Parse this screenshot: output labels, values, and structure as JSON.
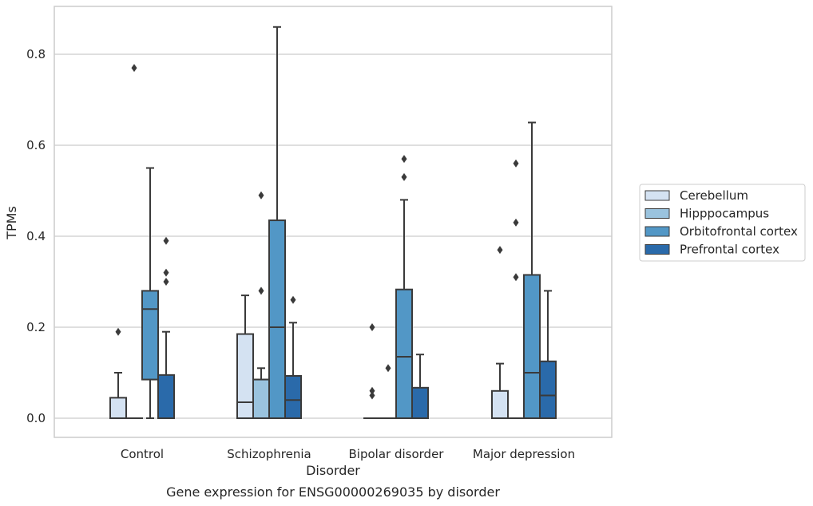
{
  "chart_data": {
    "type": "box",
    "title": "",
    "caption": "Gene expression for ENSG00000269035 by disorder",
    "xlabel": "Disorder",
    "ylabel": "TPMs",
    "ylim": [
      -0.042,
      0.905
    ],
    "y_ticks": [
      0.0,
      0.2,
      0.4,
      0.6,
      0.8
    ],
    "y_tick_labels": [
      "0.0",
      "0.2",
      "0.4",
      "0.6",
      "0.8"
    ],
    "grid": "horizontal",
    "legend_placement": "right",
    "categories": [
      "Control",
      "Schizophrenia",
      "Bipolar disorder",
      "Major depression"
    ],
    "series": [
      {
        "name": "Cerebellum",
        "color": "#d4e2f2",
        "boxes": [
          {
            "category": "Control",
            "whisker_low": 0.0,
            "q1": 0.0,
            "median": 0.0,
            "q3": 0.045,
            "whisker_high": 0.1,
            "outliers": [
              0.19
            ]
          },
          {
            "category": "Schizophrenia",
            "whisker_low": 0.0,
            "q1": 0.0,
            "median": 0.035,
            "q3": 0.185,
            "whisker_high": 0.27,
            "outliers": []
          },
          {
            "category": "Bipolar disorder",
            "whisker_low": 0.0,
            "q1": 0.0,
            "median": 0.0,
            "q3": 0.0,
            "whisker_high": 0.0,
            "outliers": [
              0.05,
              0.06,
              0.2
            ]
          },
          {
            "category": "Major depression",
            "whisker_low": 0.0,
            "q1": 0.0,
            "median": 0.0,
            "q3": 0.06,
            "whisker_high": 0.12,
            "outliers": [
              0.37
            ]
          }
        ]
      },
      {
        "name": "Hipppocampus",
        "color": "#9ac3de",
        "boxes": [
          {
            "category": "Control",
            "whisker_low": 0.0,
            "q1": 0.0,
            "median": 0.0,
            "q3": 0.0,
            "whisker_high": 0.0,
            "outliers": [
              0.77
            ]
          },
          {
            "category": "Schizophrenia",
            "whisker_low": 0.0,
            "q1": 0.0,
            "median": 0.085,
            "q3": 0.085,
            "whisker_high": 0.11,
            "outliers": [
              0.28,
              0.49
            ]
          },
          {
            "category": "Bipolar disorder",
            "whisker_low": 0.0,
            "q1": 0.0,
            "median": 0.0,
            "q3": 0.0,
            "whisker_high": 0.0,
            "outliers": [
              0.11
            ]
          },
          {
            "category": "Major depression",
            "whisker_low": 0.0,
            "q1": 0.0,
            "median": 0.0,
            "q3": 0.0,
            "whisker_high": 0.0,
            "outliers": [
              0.31,
              0.43,
              0.56
            ]
          }
        ]
      },
      {
        "name": "Orbitofrontal cortex",
        "color": "#5297c6",
        "boxes": [
          {
            "category": "Control",
            "whisker_low": 0.0,
            "q1": 0.085,
            "median": 0.24,
            "q3": 0.28,
            "whisker_high": 0.55,
            "outliers": []
          },
          {
            "category": "Schizophrenia",
            "whisker_low": 0.0,
            "q1": 0.0,
            "median": 0.2,
            "q3": 0.435,
            "whisker_high": 0.86,
            "outliers": []
          },
          {
            "category": "Bipolar disorder",
            "whisker_low": 0.0,
            "q1": 0.0,
            "median": 0.135,
            "q3": 0.283,
            "whisker_high": 0.48,
            "outliers": [
              0.53,
              0.57
            ]
          },
          {
            "category": "Major depression",
            "whisker_low": 0.0,
            "q1": 0.0,
            "median": 0.1,
            "q3": 0.315,
            "whisker_high": 0.65,
            "outliers": []
          }
        ]
      },
      {
        "name": "Prefrontal cortex",
        "color": "#2a6aaa",
        "boxes": [
          {
            "category": "Control",
            "whisker_low": 0.0,
            "q1": 0.0,
            "median": 0.0,
            "q3": 0.095,
            "whisker_high": 0.19,
            "outliers": [
              0.3,
              0.32,
              0.39
            ]
          },
          {
            "category": "Schizophrenia",
            "whisker_low": 0.0,
            "q1": 0.0,
            "median": 0.04,
            "q3": 0.093,
            "whisker_high": 0.21,
            "outliers": [
              0.26
            ]
          },
          {
            "category": "Bipolar disorder",
            "whisker_low": 0.0,
            "q1": 0.0,
            "median": 0.0,
            "q3": 0.067,
            "whisker_high": 0.14,
            "outliers": []
          },
          {
            "category": "Major depression",
            "whisker_low": 0.0,
            "q1": 0.0,
            "median": 0.05,
            "q3": 0.125,
            "whisker_high": 0.28,
            "outliers": []
          }
        ]
      }
    ]
  }
}
